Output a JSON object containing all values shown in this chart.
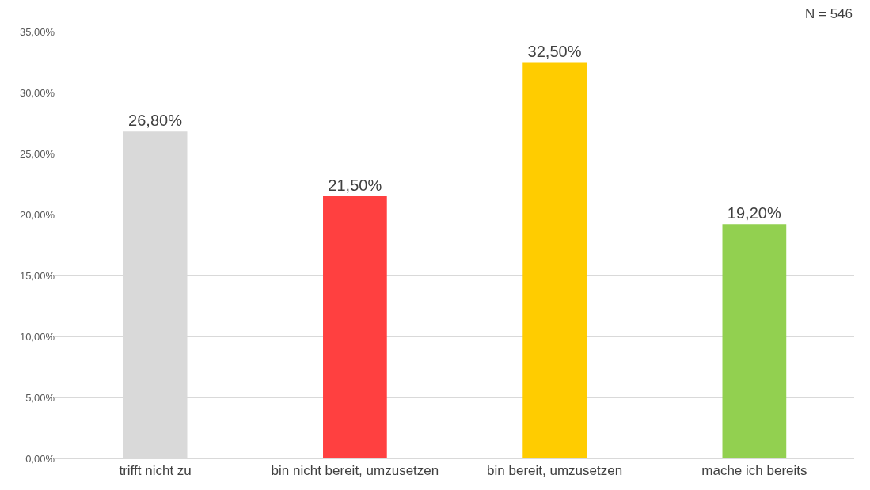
{
  "chart_data": {
    "type": "bar",
    "categories": [
      "trifft nicht zu",
      "bin nicht bereit, umzusetzen",
      "bin bereit, umzusetzen",
      "mache ich bereits"
    ],
    "values": [
      26.8,
      21.5,
      32.5,
      19.2
    ],
    "colors": [
      "#d9d9d9",
      "#ff4040",
      "#ffcc00",
      "#92d050"
    ],
    "value_labels": [
      "26,80%",
      "21,50%",
      "32,50%",
      "19,20%"
    ],
    "ylim": [
      0,
      35
    ],
    "yticks": [
      {
        "value": 0,
        "label": "0,00%"
      },
      {
        "value": 5,
        "label": "5,00%"
      },
      {
        "value": 10,
        "label": "10,00%"
      },
      {
        "value": 15,
        "label": "15,00%"
      },
      {
        "value": 20,
        "label": "20,00%"
      },
      {
        "value": 25,
        "label": "25,00%"
      },
      {
        "value": 30,
        "label": "30,00%"
      },
      {
        "value": 35,
        "label": "35,00%"
      }
    ],
    "grid": "y",
    "annotations": [
      "N = 546"
    ]
  }
}
